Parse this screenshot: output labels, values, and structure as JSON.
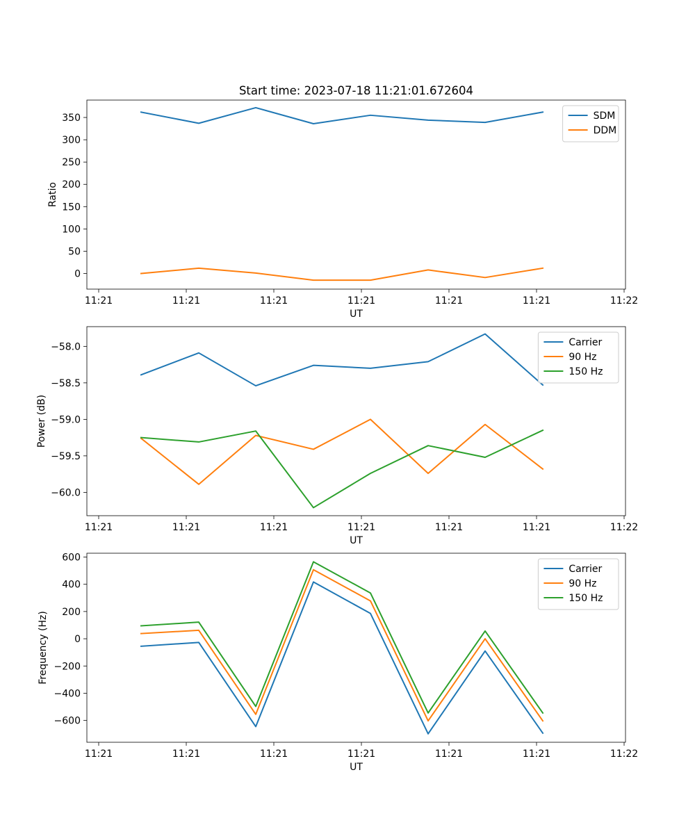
{
  "figure_title": "Start time: 2023-07-18 11:21:01.672604",
  "chart_data": [
    {
      "type": "line",
      "title": "Start time: 2023-07-18 11:21:01.672604",
      "xlabel": "UT",
      "ylabel": "Ratio",
      "x_tick_labels": [
        "11:21",
        "11:21",
        "11:21",
        "11:21",
        "11:21",
        "11:21",
        "11:22"
      ],
      "y_ticks": [
        0,
        50,
        100,
        150,
        200,
        250,
        300,
        350
      ],
      "y_tick_labels": [
        "0",
        "50",
        "100",
        "150",
        "200",
        "250",
        "300",
        "350"
      ],
      "ylim": [
        -35,
        389
      ],
      "legend_position": "top-right",
      "x": [
        1,
        2,
        3,
        4,
        5,
        6,
        7,
        8
      ],
      "series": [
        {
          "name": "SDM",
          "color": "#1f77b4",
          "values": [
            362,
            337,
            372,
            336,
            355,
            344,
            339,
            362
          ]
        },
        {
          "name": "DDM",
          "color": "#ff7f0e",
          "values": [
            0,
            12,
            1,
            -15,
            -15,
            8,
            -9,
            12
          ]
        }
      ]
    },
    {
      "type": "line",
      "title": "",
      "xlabel": "UT",
      "ylabel": "Power (dB)",
      "x_tick_labels": [
        "11:21",
        "11:21",
        "11:21",
        "11:21",
        "11:21",
        "11:21",
        "11:22"
      ],
      "y_ticks": [
        -58.0,
        -58.5,
        -59.0,
        -59.5,
        -60.0
      ],
      "y_tick_labels": [
        "−58.0",
        "−58.5",
        "−59.0",
        "−59.5",
        "−60.0"
      ],
      "ylim": [
        -60.32,
        -57.73
      ],
      "legend_position": "top-right",
      "x": [
        1,
        2,
        3,
        4,
        5,
        6,
        7,
        8
      ],
      "series": [
        {
          "name": "Carrier",
          "color": "#1f77b4",
          "values": [
            -58.39,
            -58.09,
            -58.54,
            -58.26,
            -58.3,
            -58.21,
            -57.83,
            -58.53
          ]
        },
        {
          "name": "90 Hz",
          "color": "#ff7f0e",
          "values": [
            -59.26,
            -59.89,
            -59.22,
            -59.41,
            -59.0,
            -59.74,
            -59.07,
            -59.68
          ]
        },
        {
          "name": "150 Hz",
          "color": "#2ca02c",
          "values": [
            -59.25,
            -59.31,
            -59.16,
            -60.21,
            -59.74,
            -59.36,
            -59.52,
            -59.15
          ]
        }
      ]
    },
    {
      "type": "line",
      "title": "",
      "xlabel": "UT",
      "ylabel": "Frequency (Hz)",
      "x_tick_labels": [
        "11:21",
        "11:21",
        "11:21",
        "11:21",
        "11:21",
        "11:21",
        "11:22"
      ],
      "y_ticks": [
        600,
        400,
        200,
        0,
        -200,
        -400,
        -600
      ],
      "y_tick_labels": [
        "600",
        "400",
        "200",
        "0",
        "−200",
        "−400",
        "−600"
      ],
      "ylim": [
        -760,
        628
      ],
      "legend_position": "top-right",
      "x": [
        1,
        2,
        3,
        4,
        5,
        6,
        7,
        8
      ],
      "series": [
        {
          "name": "Carrier",
          "color": "#1f77b4",
          "values": [
            -55,
            -27,
            -645,
            417,
            186,
            -698,
            -90,
            -693
          ]
        },
        {
          "name": "90 Hz",
          "color": "#ff7f0e",
          "values": [
            38,
            62,
            -555,
            507,
            278,
            -603,
            0,
            -603
          ]
        },
        {
          "name": "150 Hz",
          "color": "#2ca02c",
          "values": [
            95,
            122,
            -497,
            565,
            336,
            -545,
            57,
            -545
          ]
        }
      ]
    }
  ]
}
